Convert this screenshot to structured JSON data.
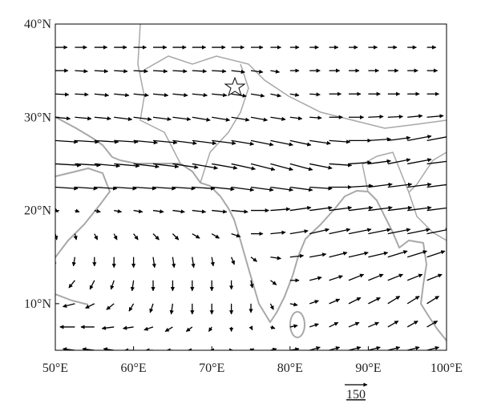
{
  "map": {
    "xlim": [
      50,
      100
    ],
    "ylim": [
      5,
      40
    ],
    "xticks": [
      {
        "value": 50,
        "label": "50°E"
      },
      {
        "value": 60,
        "label": "60°E"
      },
      {
        "value": 70,
        "label": "70°E"
      },
      {
        "value": 80,
        "label": "80°E"
      },
      {
        "value": 90,
        "label": "90°E"
      },
      {
        "value": 100,
        "label": "100°E"
      }
    ],
    "yticks": [
      {
        "value": 10,
        "label": "10°N"
      },
      {
        "value": 20,
        "label": "20°N"
      },
      {
        "value": 30,
        "label": "30°N"
      },
      {
        "value": 40,
        "label": "40°N"
      }
    ],
    "reference_vector": 150,
    "lons": [
      50,
      52.5,
      55,
      57.5,
      60,
      62.5,
      65,
      67.5,
      70,
      72.5,
      75,
      77.5,
      80,
      82.5,
      85,
      87.5,
      90,
      92.5,
      95,
      97.5,
      100
    ],
    "lats": [
      37.5,
      35,
      32.5,
      30,
      27.5,
      25,
      22.5,
      20,
      17.5,
      15,
      12.5,
      10,
      7.5,
      5
    ],
    "u": [
      [
        80,
        80,
        85,
        85,
        85,
        90,
        90,
        90,
        90,
        85,
        80,
        70,
        60,
        60,
        60,
        60,
        60,
        60,
        60,
        60,
        60
      ],
      [
        85,
        85,
        90,
        90,
        95,
        95,
        95,
        95,
        95,
        90,
        80,
        60,
        60,
        70,
        70,
        70,
        70,
        70,
        70,
        70,
        70
      ],
      [
        90,
        90,
        95,
        100,
        100,
        100,
        100,
        100,
        100,
        100,
        90,
        70,
        60,
        70,
        80,
        80,
        80,
        80,
        80,
        80,
        80
      ],
      [
        100,
        110,
        110,
        120,
        120,
        120,
        120,
        120,
        120,
        120,
        110,
        100,
        80,
        80,
        90,
        100,
        100,
        100,
        100,
        110,
        110
      ],
      [
        150,
        160,
        160,
        160,
        160,
        160,
        160,
        160,
        160,
        150,
        150,
        150,
        140,
        140,
        140,
        150,
        150,
        150,
        160,
        160,
        160
      ],
      [
        170,
        170,
        170,
        170,
        170,
        170,
        170,
        170,
        170,
        160,
        160,
        150,
        150,
        150,
        150,
        150,
        150,
        150,
        160,
        160,
        160
      ],
      [
        150,
        150,
        150,
        150,
        150,
        150,
        150,
        150,
        150,
        150,
        150,
        150,
        150,
        150,
        150,
        160,
        160,
        160,
        160,
        160,
        160
      ],
      [
        20,
        30,
        40,
        50,
        60,
        70,
        80,
        90,
        100,
        110,
        120,
        130,
        140,
        150,
        150,
        160,
        160,
        160,
        160,
        160,
        150
      ],
      [
        10,
        10,
        20,
        20,
        30,
        40,
        40,
        50,
        50,
        60,
        80,
        100,
        120,
        130,
        140,
        150,
        150,
        150,
        150,
        150,
        140
      ],
      [
        -10,
        -10,
        0,
        0,
        0,
        10,
        10,
        10,
        10,
        20,
        40,
        70,
        90,
        110,
        120,
        130,
        130,
        130,
        130,
        120,
        120
      ],
      [
        -50,
        -40,
        -30,
        -20,
        -10,
        0,
        0,
        0,
        0,
        0,
        10,
        40,
        60,
        80,
        90,
        100,
        100,
        100,
        100,
        100,
        100
      ],
      [
        -90,
        -80,
        -60,
        -50,
        -30,
        -20,
        -10,
        0,
        0,
        0,
        0,
        20,
        50,
        60,
        70,
        80,
        80,
        80,
        80,
        80,
        80
      ],
      [
        -100,
        -100,
        -90,
        -80,
        -70,
        -60,
        -50,
        -40,
        -20,
        0,
        10,
        30,
        50,
        60,
        60,
        70,
        70,
        70,
        70,
        70,
        70
      ],
      [
        -80,
        -80,
        -80,
        -70,
        -60,
        -50,
        -40,
        -30,
        -10,
        10,
        20,
        40,
        60,
        70,
        70,
        80,
        80,
        80,
        80,
        80,
        80
      ]
    ],
    "v": [
      [
        0,
        0,
        0,
        0,
        0,
        0,
        0,
        0,
        0,
        0,
        0,
        0,
        0,
        0,
        0,
        0,
        0,
        0,
        0,
        0,
        0
      ],
      [
        0,
        -5,
        -5,
        -5,
        -5,
        -5,
        -5,
        -5,
        -5,
        -10,
        -10,
        -10,
        0,
        0,
        0,
        0,
        0,
        0,
        0,
        0,
        0
      ],
      [
        -5,
        -5,
        -10,
        -10,
        -10,
        -10,
        -10,
        -10,
        -10,
        -15,
        -15,
        -15,
        -10,
        -5,
        0,
        0,
        0,
        0,
        0,
        0,
        0
      ],
      [
        -10,
        -10,
        -10,
        -15,
        -15,
        -15,
        -15,
        -20,
        -20,
        -20,
        -20,
        -15,
        -10,
        -5,
        0,
        0,
        5,
        5,
        10,
        10,
        10
      ],
      [
        -10,
        -10,
        -10,
        -10,
        -15,
        -15,
        -20,
        -20,
        -20,
        -25,
        -30,
        -30,
        -30,
        -20,
        -10,
        0,
        10,
        20,
        30,
        30,
        30
      ],
      [
        -10,
        -10,
        -15,
        -15,
        -20,
        -20,
        -25,
        -30,
        -30,
        -35,
        -40,
        -40,
        -40,
        -30,
        -10,
        10,
        20,
        30,
        30,
        20,
        20
      ],
      [
        -10,
        -10,
        -10,
        -10,
        -10,
        -10,
        -10,
        -10,
        -15,
        -20,
        -20,
        -20,
        -20,
        -10,
        0,
        10,
        20,
        20,
        20,
        20,
        20
      ],
      [
        -10,
        -10,
        -10,
        -10,
        -10,
        -10,
        -10,
        -10,
        -10,
        -10,
        0,
        10,
        20,
        20,
        20,
        20,
        20,
        20,
        20,
        20,
        20
      ],
      [
        -40,
        -40,
        -40,
        -40,
        -40,
        -40,
        -40,
        -30,
        -30,
        -20,
        0,
        10,
        20,
        30,
        30,
        30,
        30,
        30,
        30,
        30,
        30
      ],
      [
        -60,
        -60,
        -60,
        -70,
        -70,
        -70,
        -70,
        -70,
        -60,
        -50,
        -30,
        -10,
        10,
        20,
        30,
        30,
        30,
        40,
        40,
        40,
        40
      ],
      [
        -50,
        -50,
        -60,
        -60,
        -70,
        -70,
        -70,
        -70,
        -70,
        -60,
        -50,
        -30,
        0,
        20,
        30,
        40,
        40,
        40,
        40,
        40,
        40
      ],
      [
        -10,
        -20,
        -30,
        -40,
        -50,
        -60,
        -70,
        -70,
        -70,
        -70,
        -60,
        -40,
        -10,
        20,
        30,
        40,
        40,
        50,
        50,
        50,
        50
      ],
      [
        10,
        0,
        0,
        -10,
        -10,
        -20,
        -30,
        -30,
        -30,
        -30,
        -20,
        -10,
        10,
        20,
        30,
        30,
        30,
        40,
        40,
        40,
        40
      ],
      [
        10,
        10,
        10,
        10,
        0,
        0,
        0,
        0,
        0,
        0,
        10,
        10,
        10,
        20,
        20,
        20,
        20,
        20,
        20,
        20,
        20
      ]
    ]
  }
}
